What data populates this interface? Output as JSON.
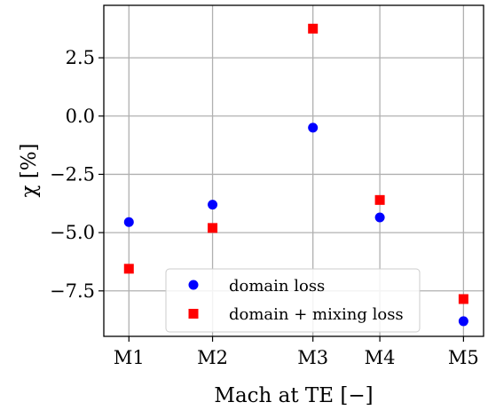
{
  "chart_data": {
    "type": "scatter",
    "xlabel": "Mach at TE [−]",
    "ylabel": "χ [%]",
    "categories": [
      "M1",
      "M2",
      "M3",
      "M4",
      "M5"
    ],
    "x": [
      0.7,
      0.75,
      0.81,
      0.85,
      0.9
    ],
    "xlim": [
      0.685,
      0.912
    ],
    "ylim": [
      -9.45,
      4.75
    ],
    "yticks": [
      -7.5,
      -5.0,
      -2.5,
      0.0,
      2.5
    ],
    "ytick_labels": [
      "−7.5",
      "−5.0",
      "−2.5",
      "0.0",
      "2.5"
    ],
    "grid": true,
    "legend_position": "lower-right",
    "series": [
      {
        "name": "domain loss",
        "marker": "circle",
        "color": "#0000ff",
        "values": [
          -4.55,
          -3.8,
          -0.5,
          -4.35,
          -8.8
        ]
      },
      {
        "name": "domain + mixing loss",
        "marker": "square",
        "color": "#ff0000",
        "values": [
          -6.55,
          -4.8,
          3.75,
          -3.6,
          -7.85
        ]
      }
    ]
  }
}
